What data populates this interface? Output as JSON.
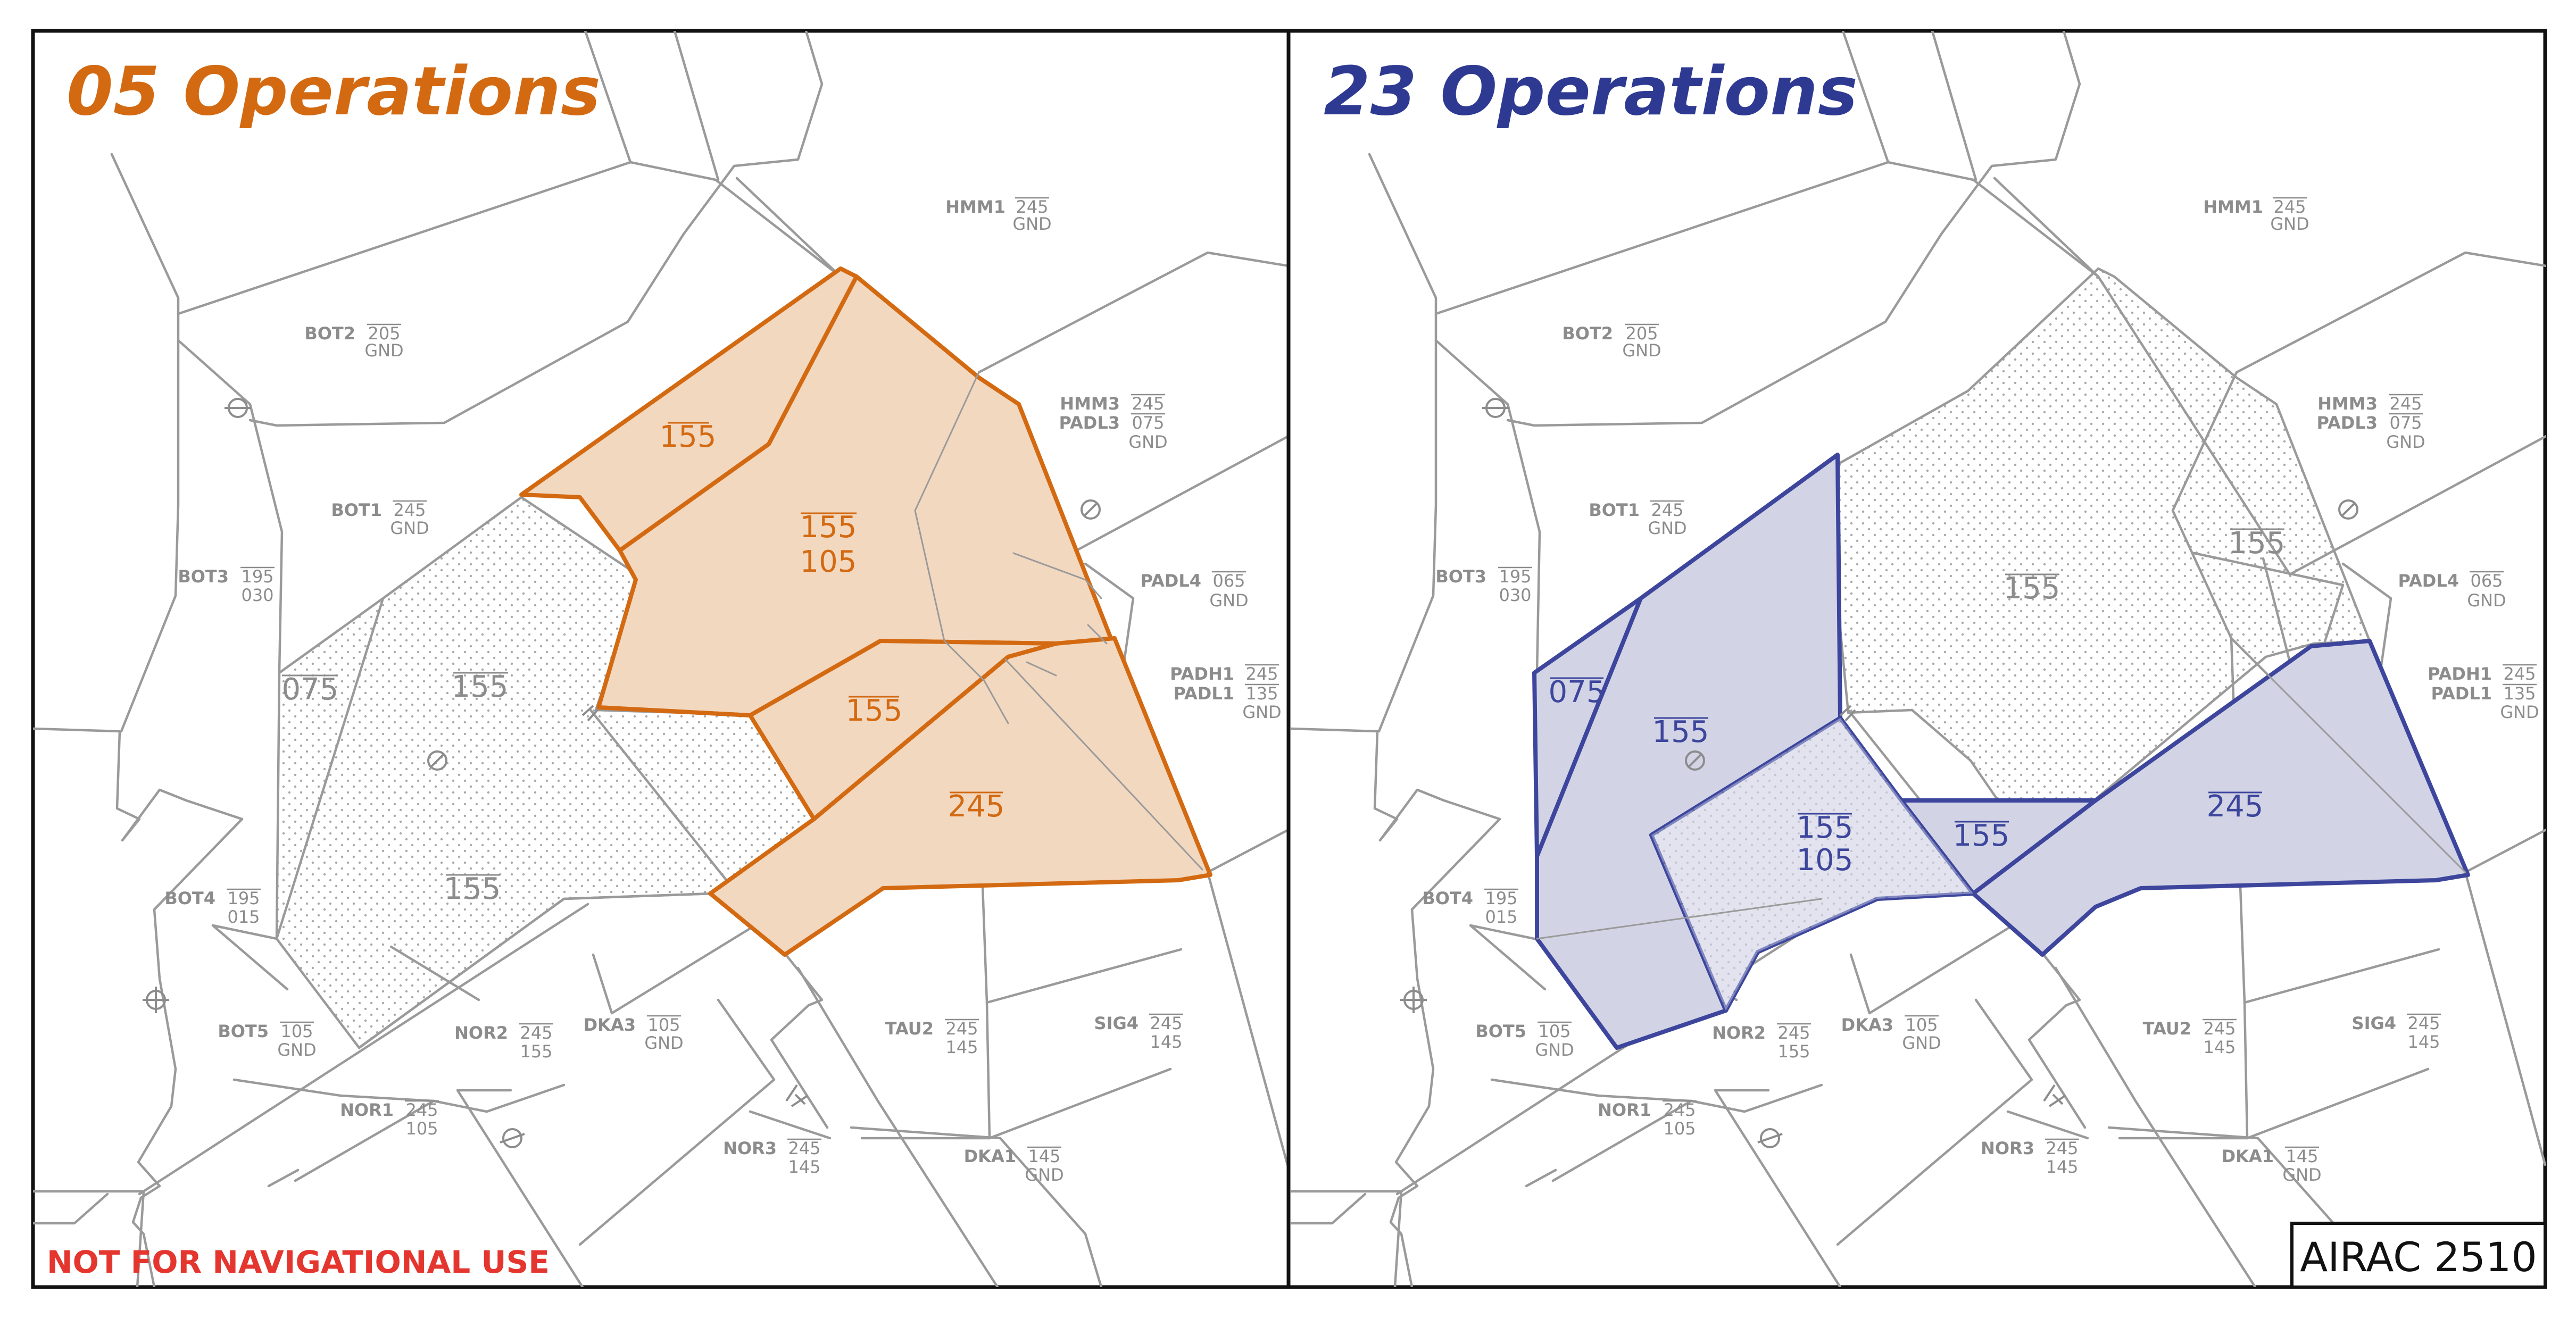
{
  "panels": [
    {
      "id": "ops05",
      "title": "05 Operations",
      "title_color": "#d36a12",
      "accent_color": "#d36a12",
      "highlighted_sectors": [
        {
          "ceiling": "155",
          "floor": ""
        },
        {
          "ceiling": "155",
          "floor": "105"
        },
        {
          "ceiling": "155",
          "floor": ""
        },
        {
          "ceiling": "245",
          "floor": ""
        }
      ],
      "dotted_areas": [
        {
          "ceiling": "075"
        },
        {
          "ceiling": "155"
        },
        {
          "ceiling": "155"
        }
      ],
      "footer_note": "NOT FOR NAVIGATIONAL USE"
    },
    {
      "id": "ops23",
      "title": "23 Operations",
      "title_color": "#2e3a92",
      "accent_color": "#3d469c",
      "highlighted_sectors": [
        {
          "ceiling": "075",
          "floor": ""
        },
        {
          "ceiling": "155",
          "floor": ""
        },
        {
          "ceiling": "155",
          "floor": "105"
        },
        {
          "ceiling": "155",
          "floor": ""
        },
        {
          "ceiling": "245",
          "floor": ""
        }
      ],
      "dotted_areas": [
        {
          "ceiling": "155"
        },
        {
          "ceiling": "155"
        }
      ],
      "footer_note": ""
    }
  ],
  "sector_labels": [
    {
      "name": "HMM1",
      "ceiling": "245",
      "floor": "GND"
    },
    {
      "name": "BOT2",
      "ceiling": "205",
      "floor": "GND"
    },
    {
      "name": "HMM3",
      "ceiling": "245",
      "floor": ""
    },
    {
      "name": "PADL3",
      "ceiling": "075",
      "floor": "GND"
    },
    {
      "name": "BOT1",
      "ceiling": "245",
      "floor": "GND"
    },
    {
      "name": "BOT3",
      "ceiling": "195",
      "floor": "030"
    },
    {
      "name": "PADL4",
      "ceiling": "065",
      "floor": "GND"
    },
    {
      "name": "PADH1",
      "ceiling": "245",
      "floor": ""
    },
    {
      "name": "PADL1",
      "ceiling": "135",
      "floor": "GND"
    },
    {
      "name": "BOT4",
      "ceiling": "195",
      "floor": "015"
    },
    {
      "name": "BOT5",
      "ceiling": "105",
      "floor": "GND"
    },
    {
      "name": "NOR2",
      "ceiling": "245",
      "floor": "155"
    },
    {
      "name": "DKA3",
      "ceiling": "105",
      "floor": "GND"
    },
    {
      "name": "TAU2",
      "ceiling": "245",
      "floor": "145"
    },
    {
      "name": "SIG4",
      "ceiling": "245",
      "floor": "145"
    },
    {
      "name": "NOR1",
      "ceiling": "245",
      "floor": "105"
    },
    {
      "name": "NOR3",
      "ceiling": "245",
      "floor": "145"
    },
    {
      "name": "DKA1",
      "ceiling": "145",
      "floor": "GND"
    }
  ],
  "airac": "AIRAC 2510",
  "colors": {
    "boundary": "#9a9a9a",
    "label": "#8c8c8c",
    "warning": "#e4362e",
    "orange_fill": "#f3d8c0",
    "blue_fill": "#d2d4e6"
  },
  "icons": [
    "airport-icon",
    "heliport-icon",
    "airfield-icon"
  ]
}
